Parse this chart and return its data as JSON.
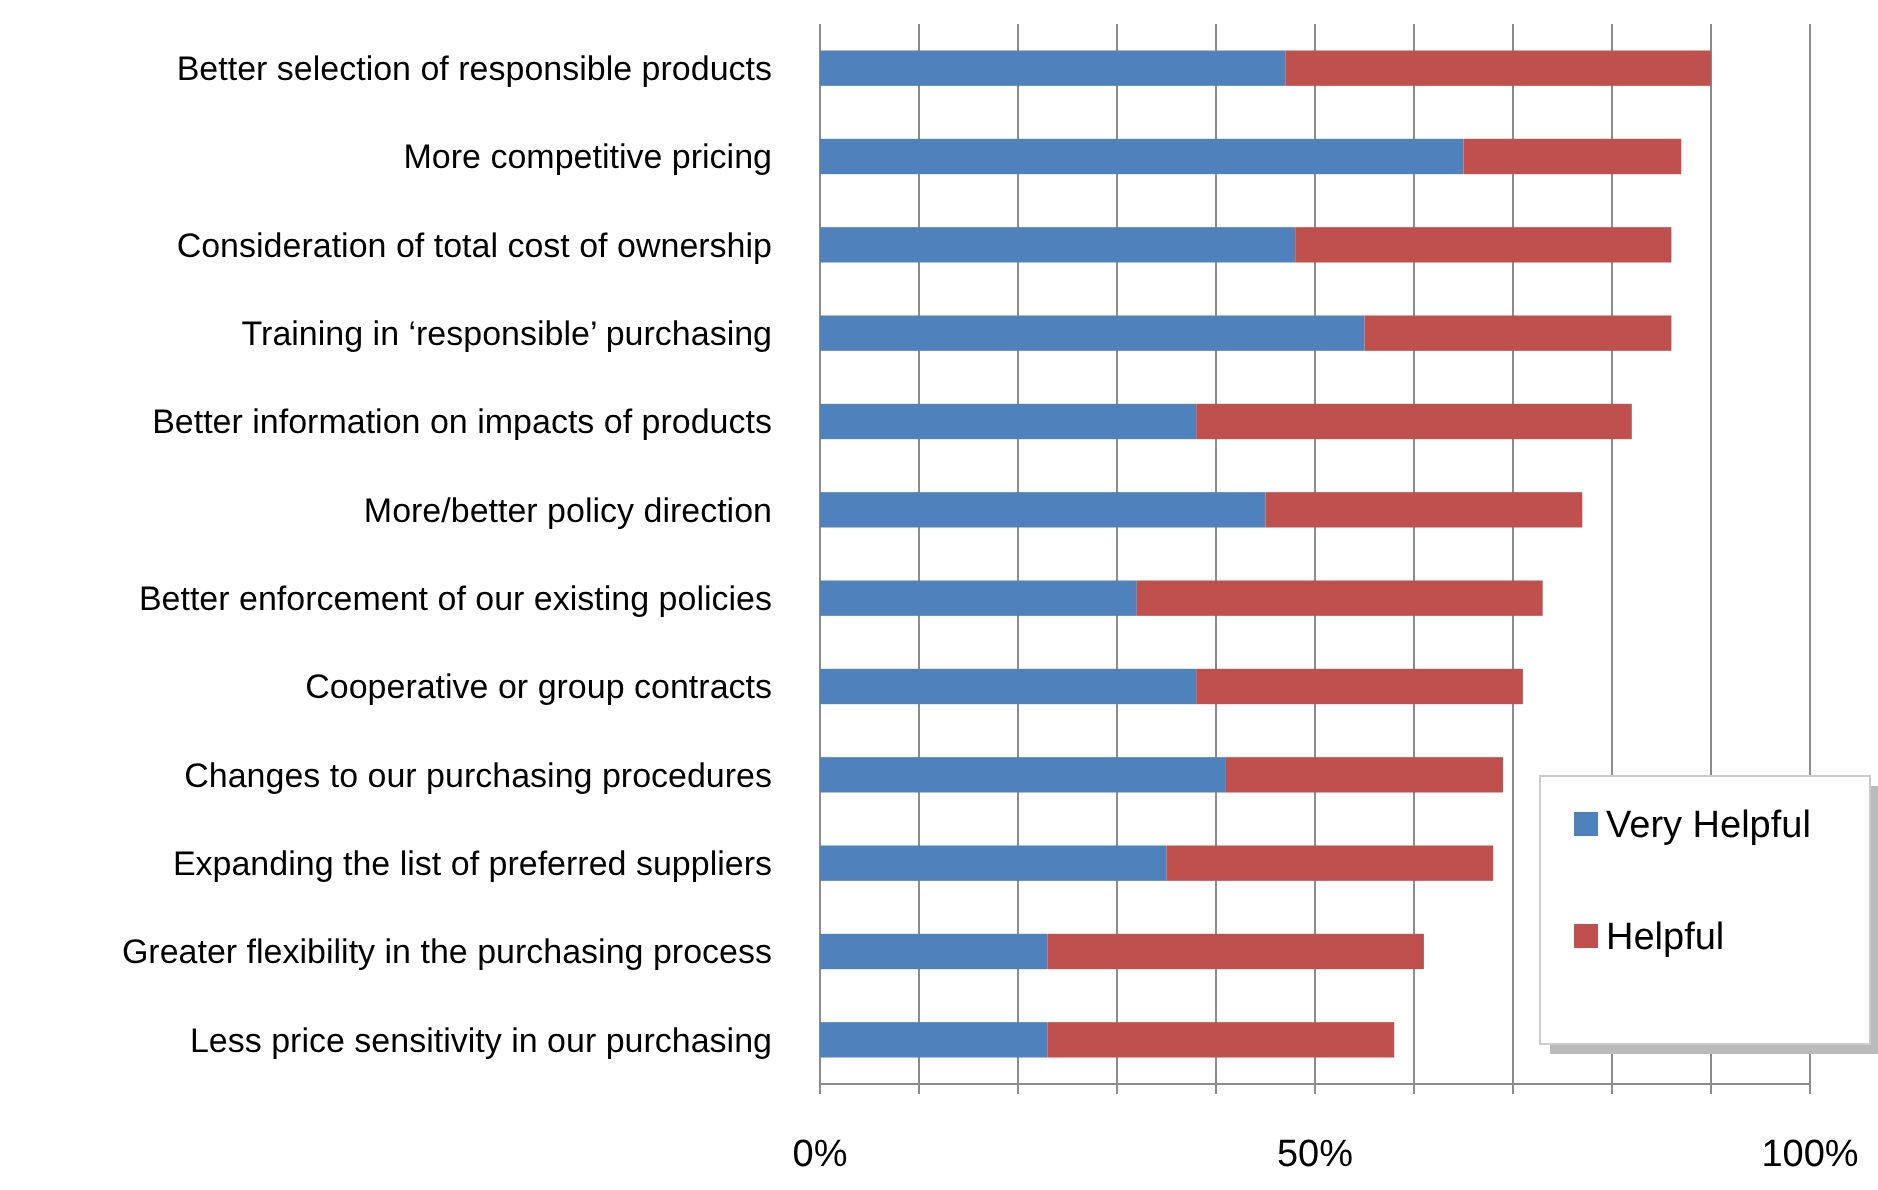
{
  "chart_data": {
    "type": "bar",
    "orientation": "horizontal",
    "stacked": true,
    "categories": [
      "Better selection of responsible products",
      "More competitive pricing",
      "Consideration of total cost of ownership",
      "Training in ‘responsible’ purchasing",
      "Better information on impacts of products",
      "More/better policy direction",
      "Better enforcement of our existing policies",
      "Cooperative or group contracts",
      "Changes to our purchasing procedures",
      "Expanding the list of preferred suppliers",
      "Greater flexibility in the purchasing process",
      "Less price sensitivity in our purchasing"
    ],
    "series": [
      {
        "name": "Very Helpful",
        "color": "#4f81bd",
        "values": [
          47,
          65,
          48,
          55,
          38,
          45,
          32,
          38,
          41,
          35,
          23,
          23
        ]
      },
      {
        "name": "Helpful",
        "color": "#c0504d",
        "values": [
          43,
          22,
          38,
          31,
          44,
          32,
          41,
          33,
          28,
          33,
          38,
          35
        ]
      }
    ],
    "xlim": [
      0,
      100
    ],
    "xticks": [
      {
        "value": 0,
        "label": "0%"
      },
      {
        "value": 10,
        "label": null
      },
      {
        "value": 20,
        "label": null
      },
      {
        "value": 30,
        "label": null
      },
      {
        "value": 40,
        "label": null
      },
      {
        "value": 50,
        "label": "50%"
      },
      {
        "value": 60,
        "label": null
      },
      {
        "value": 70,
        "label": null
      },
      {
        "value": 80,
        "label": null
      },
      {
        "value": 90,
        "label": null
      },
      {
        "value": 100,
        "label": "100%"
      }
    ],
    "grid": "x",
    "legend": "bottom right"
  }
}
